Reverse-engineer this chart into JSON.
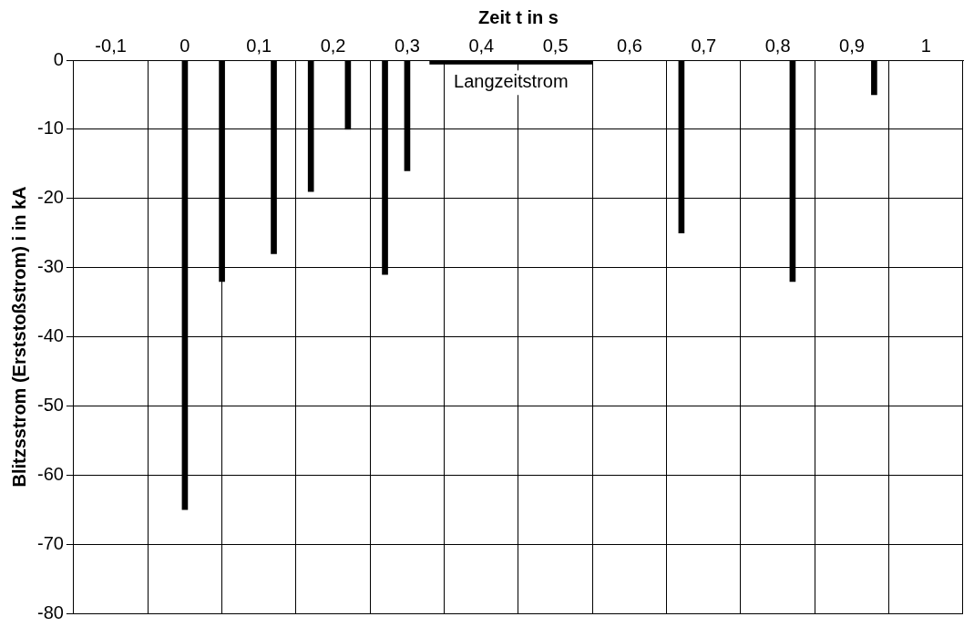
{
  "chart_data": {
    "type": "bar",
    "xlabel": "Zeit t in s",
    "ylabel": "Blitzsstrom (Erststoßstrom) i in kA",
    "x": [
      0,
      0.05,
      0.12,
      0.17,
      0.22,
      0.27,
      0.3,
      0.67,
      0.82,
      0.93
    ],
    "series": [
      {
        "color": "#000000",
        "values": [
          -65,
          -32,
          -28,
          -19,
          -10,
          -31,
          -16,
          -25,
          -32,
          -5
        ]
      },
      {
        "type": "line",
        "name": "Langzeitstrom",
        "color": "#000000",
        "x": [
          0.33,
          0.55
        ],
        "values": [
          -0.3,
          -0.3
        ]
      }
    ],
    "xlim": [
      -0.1,
      1
    ],
    "xticks": [
      {
        "value": -0.1,
        "label": "-0,1"
      },
      0,
      {
        "value": 0.1,
        "label": "0,1"
      },
      {
        "value": 0.2,
        "label": "0,2"
      },
      {
        "value": 0.3,
        "label": "0,3"
      },
      {
        "value": 0.4,
        "label": "0,4"
      },
      {
        "value": 0.5,
        "label": "0,5"
      },
      {
        "value": 0.6,
        "label": "0,6"
      },
      {
        "value": 0.7,
        "label": "0,7"
      },
      {
        "value": 0.8,
        "label": "0,8"
      },
      {
        "value": 0.9,
        "label": "0,9"
      },
      1
    ],
    "ylim": [
      -80,
      0
    ],
    "yticks": [
      0,
      -10,
      -20,
      -30,
      -40,
      -50,
      -60,
      -70,
      -80
    ],
    "grid": true,
    "legend": false,
    "marker": "none"
  }
}
